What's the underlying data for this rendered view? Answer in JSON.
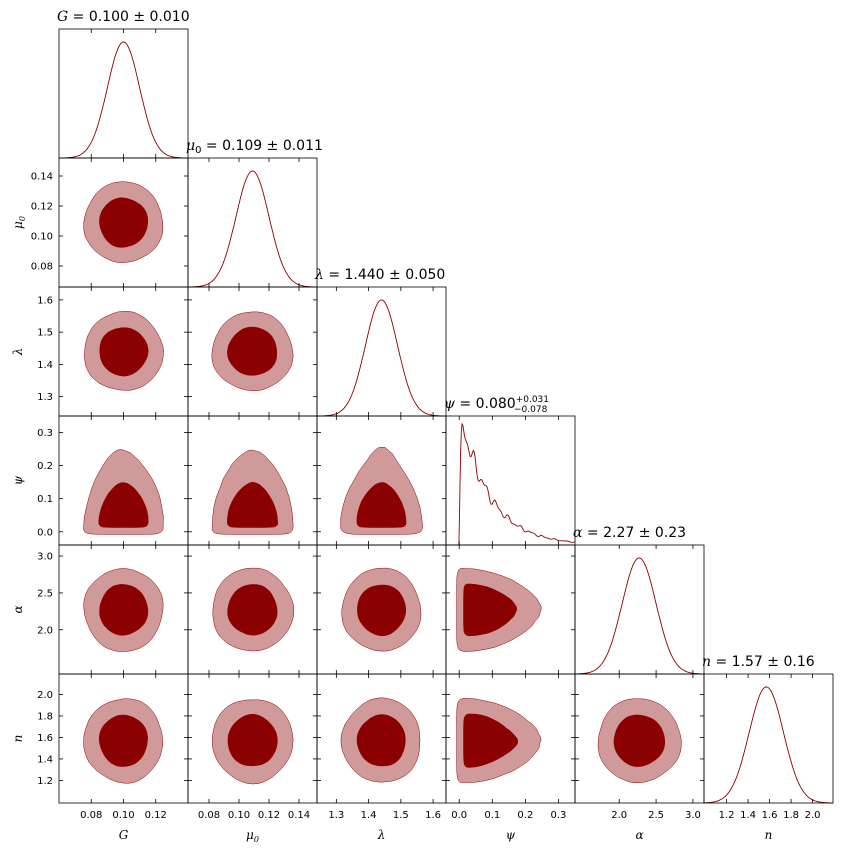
{
  "chart_data": {
    "type": "corner",
    "colors": {
      "fill_inner": "#8b0000",
      "fill_outer": "#d19a9a",
      "line": "#8b0000"
    },
    "parameters": [
      {
        "key": "G",
        "symbol": "G",
        "sub": "",
        "axis_label": "G",
        "title_value": "0.100 ± 0.010",
        "mean": 0.1,
        "sigma": 0.01,
        "range": [
          0.06,
          0.14
        ],
        "ticks": [
          0.08,
          0.1,
          0.12
        ],
        "tick_labels": [
          "0.08",
          "0.10",
          "0.12"
        ],
        "title_lines": [
          "= 0.100 ± 0.010"
        ]
      },
      {
        "key": "mu0",
        "symbol": "μ",
        "sub": "0",
        "axis_label": "μ0",
        "title_value": "0.109 ± 0.011",
        "mean": 0.109,
        "sigma": 0.011,
        "range": [
          0.066,
          0.152
        ],
        "ticks": [
          0.08,
          0.1,
          0.12,
          0.14
        ],
        "tick_labels": [
          "0.08",
          "0.10",
          "0.12",
          "0.14"
        ],
        "title_lines": [
          "= 0.109 ± 0.011"
        ]
      },
      {
        "key": "lambda",
        "symbol": "λ",
        "sub": "",
        "axis_label": "λ",
        "title_value": "1.440 ± 0.050",
        "mean": 1.44,
        "sigma": 0.05,
        "range": [
          1.24,
          1.64
        ],
        "ticks": [
          1.3,
          1.4,
          1.5,
          1.6
        ],
        "tick_labels": [
          "1.3",
          "1.4",
          "1.5",
          "1.6"
        ],
        "title_lines": [
          "= 1.440 ± 0.050"
        ]
      },
      {
        "key": "psi",
        "symbol": "ψ",
        "sub": "",
        "axis_label": "ψ",
        "title_value": "0.080 +0.031 −0.078",
        "mean": 0.08,
        "sigma": 0.06,
        "range": [
          -0.04,
          0.35
        ],
        "ticks": [
          0.0,
          0.1,
          0.2,
          0.3
        ],
        "tick_labels": [
          "0.0",
          "0.1",
          "0.2",
          "0.3"
        ],
        "title_main": "= 0.080",
        "title_sup": "+0.031",
        "title_sub": "−0.078"
      },
      {
        "key": "alpha",
        "symbol": "α",
        "sub": "",
        "axis_label": "α",
        "title_value": "2.27 ± 0.23",
        "mean": 2.27,
        "sigma": 0.23,
        "range": [
          1.4,
          3.15
        ],
        "ticks": [
          2.0,
          2.5,
          3.0
        ],
        "tick_labels": [
          "2.0",
          "2.5",
          "3.0"
        ],
        "title_lines": [
          "= 2.27 ± 0.23"
        ]
      },
      {
        "key": "n",
        "symbol": "n",
        "sub": "",
        "axis_label": "n",
        "title_value": "1.57 ± 0.16",
        "mean": 1.57,
        "sigma": 0.16,
        "range": [
          0.99,
          2.19
        ],
        "ticks": [
          1.2,
          1.4,
          1.6,
          1.8,
          2.0
        ],
        "tick_labels": [
          "1.2",
          "1.4",
          "1.6",
          "1.8",
          "2.0"
        ],
        "title_lines": [
          "= 1.57 ± 0.16"
        ]
      }
    ],
    "x_tick_labels_shown": {
      "G": [
        "0.08",
        "0.10",
        "0.12"
      ],
      "mu0": [
        "0.08",
        "0.10",
        "0.12",
        "0.14"
      ],
      "lambda": [
        "1.3",
        "1.4",
        "1.5",
        "1.6"
      ],
      "psi": [
        "0.0",
        "0.1",
        "0.2",
        "0.3"
      ],
      "alpha": [
        "2.0",
        "2.5",
        "3.0"
      ],
      "n": [
        "1.2",
        "1.4",
        "1.6",
        "1.8",
        "2.0"
      ]
    },
    "y_tick_labels_shown": {
      "mu0": [
        "0.08",
        "0.10",
        "0.12",
        "0.14"
      ],
      "lambda": [
        "1.3",
        "1.4",
        "1.5",
        "1.6"
      ],
      "psi": [
        "0.0",
        "0.1",
        "0.2",
        "0.3"
      ],
      "alpha": [
        "2.0",
        "2.5",
        "3.0"
      ],
      "n": [
        "1.2",
        "1.4",
        "1.6",
        "1.8",
        "2.0"
      ]
    },
    "contour_levels": [
      "68%",
      "95%"
    ],
    "grid": false,
    "legend": "none"
  }
}
